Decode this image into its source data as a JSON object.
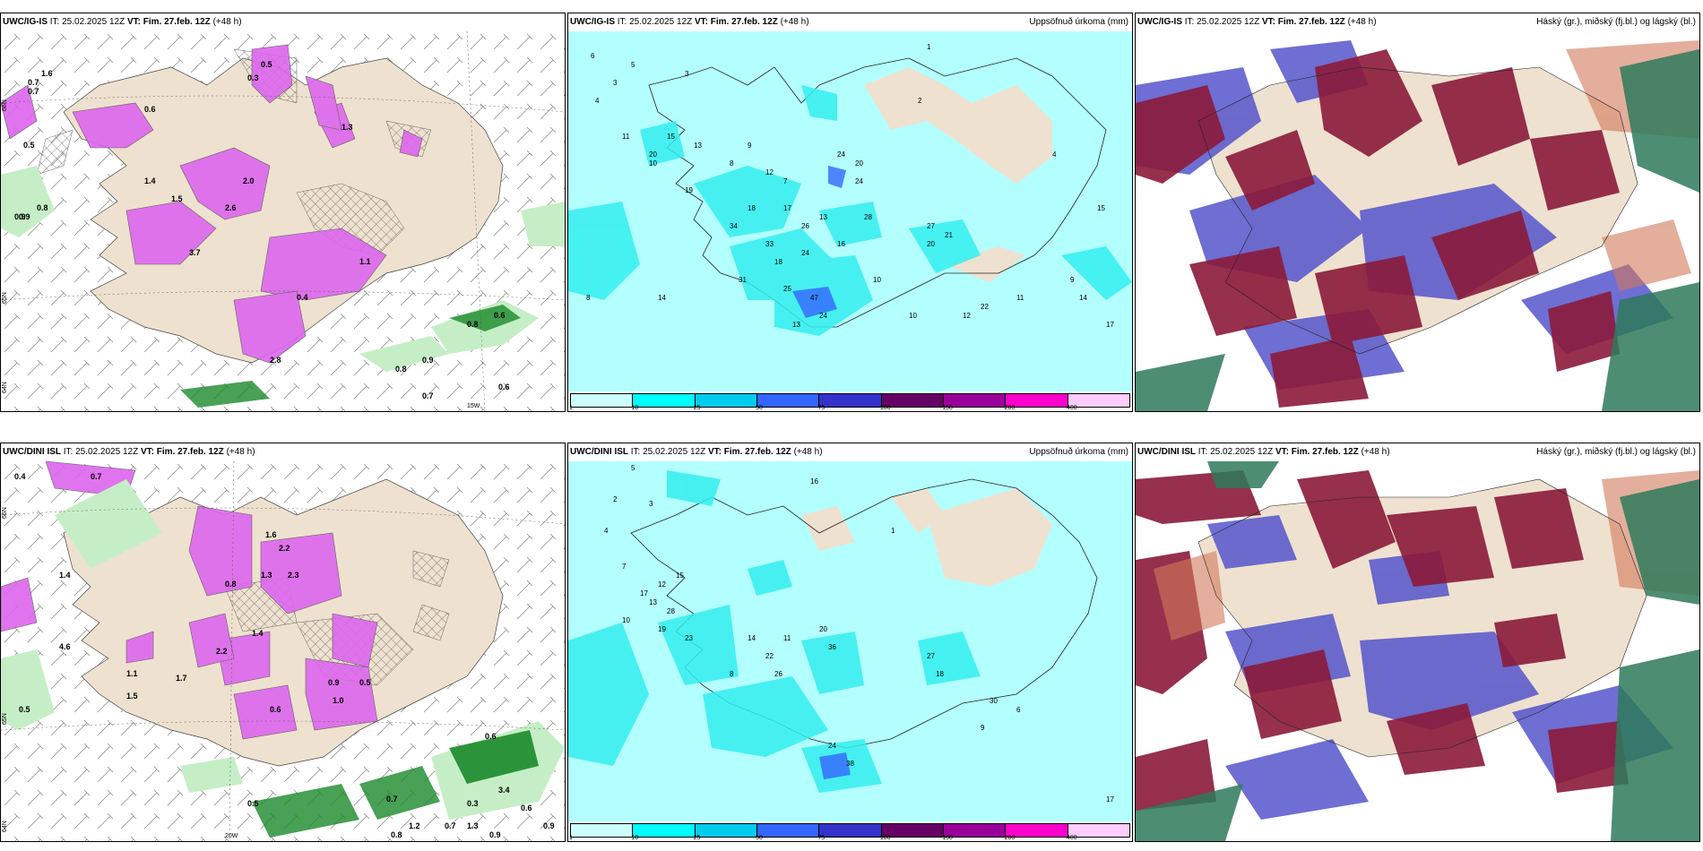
{
  "panels": [
    {
      "model": "UWC/IG-IS",
      "it_label": "IT:",
      "it": "25.02.2025 12Z",
      "vt_label": "VT:",
      "vt": "Fim. 27.feb. 12Z",
      "lead": "(+48 h)",
      "right_title": ""
    },
    {
      "model": "UWC/IG-IS",
      "it_label": "IT:",
      "it": "25.02.2025 12Z",
      "vt_label": "VT:",
      "vt": "Fim. 27.feb. 12Z",
      "lead": "(+48 h)",
      "right_title": "Uppsöfnuð úrkoma (mm)"
    },
    {
      "model": "UWC/IG-IS",
      "it_label": "IT:",
      "it": "25.02.2025 12Z",
      "vt_label": "VT:",
      "vt": "Fim. 27.feb. 12Z",
      "lead": "(+48 h)",
      "right_title": "Háský (gr.), miðský (fj.bl.) og lágský (bl.)"
    },
    {
      "model": "UWC/DINI ISL",
      "it_label": "IT:",
      "it": "25.02.2025 12Z",
      "vt_label": "VT:",
      "vt": "Fim. 27.feb. 12Z",
      "lead": "(+48 h)",
      "right_title": ""
    },
    {
      "model": "UWC/DINI ISL",
      "it_label": "IT:",
      "it": "25.02.2025 12Z",
      "vt_label": "VT:",
      "vt": "Fim. 27.feb. 12Z",
      "lead": "(+48 h)",
      "right_title": "Uppsöfnuð úrkoma (mm)"
    },
    {
      "model": "UWC/DINI ISL",
      "it_label": "IT:",
      "it": "25.02.2025 12Z",
      "vt_label": "VT:",
      "vt": "Fim. 27.feb. 12Z",
      "lead": "(+48 h)",
      "right_title": "Háský (gr.), miðský (fj.bl.) og lágský (bl.)"
    }
  ],
  "colorbar": {
    "ticks": [
      "1",
      "10",
      "25",
      "50",
      "75",
      "100",
      "150",
      "200",
      "400"
    ],
    "colors": [
      "#ccffff",
      "#00ffff",
      "#00ccee",
      "#3366ff",
      "#3333cc",
      "#660066",
      "#990099",
      "#ff00cc",
      "#ffccff"
    ]
  },
  "colors": {
    "land": "#efe1cf",
    "precip_light": "#b3ffff",
    "precip_mid": "#33eeee",
    "snow": "#dd66ee",
    "green_light": "#c6eec6",
    "green_dark": "#1a8a2a",
    "high_cloud": "#8b1a3a",
    "mid_cloud": "#5555cc",
    "low_cloud": "#2e7a5a"
  },
  "map_axes": {
    "ig": {
      "lat1": "66N",
      "lat2": "65N",
      "lat3": "64N",
      "lon1": "15W"
    },
    "dini": {
      "lat1": "66N",
      "lat2": "65N",
      "lat3": "64N",
      "lon1": "20W"
    }
  },
  "ig_snow_labels": [
    "1.4",
    "1.5",
    "2.0",
    "2.6",
    "3.7",
    "1.3",
    "0.9",
    "2.8",
    "0.4",
    "0.5",
    "1.6",
    "0.6",
    "0.7",
    "0.3",
    "1.1"
  ],
  "ig_sea_labels": [
    "0.7",
    "0.5",
    "0.9",
    "0.8",
    "0.6",
    "0.9",
    "0.8",
    "0.8",
    "0.7",
    "0.6"
  ],
  "ig_precip_labels": [
    "6",
    "3",
    "4",
    "1",
    "2",
    "5",
    "3",
    "10",
    "11",
    "15",
    "20",
    "13",
    "9",
    "7",
    "24",
    "20",
    "19",
    "24",
    "8",
    "12",
    "34",
    "18",
    "17",
    "13",
    "16",
    "28",
    "26",
    "27",
    "20",
    "21",
    "14",
    "33",
    "18",
    "24",
    "31",
    "25",
    "47",
    "24",
    "13",
    "10",
    "10",
    "12",
    "11",
    "9",
    "8",
    "4",
    "15",
    "22",
    "14",
    "17"
  ],
  "dini_snow_labels": [
    "0.4",
    "0.7",
    "1.6",
    "2.2",
    "1.4",
    "0.8",
    "1.3",
    "2.3",
    "4.6",
    "1.1",
    "1.7",
    "1.5",
    "0.9",
    "1.0",
    "0.6",
    "2.2",
    "1.4",
    "0.5"
  ],
  "dini_sea_labels": [
    "0.5",
    "0.6",
    "0.7",
    "0.3",
    "3.4",
    "0.6",
    "0.9",
    "1.2",
    "0.8",
    "0.5",
    "0.7",
    "1.3",
    "0.9"
  ],
  "dini_precip_labels": [
    "5",
    "3",
    "2",
    "1",
    "16",
    "4",
    "12",
    "15",
    "7",
    "17",
    "13",
    "28",
    "19",
    "23",
    "10",
    "22",
    "20",
    "14",
    "11",
    "8",
    "36",
    "26",
    "38",
    "24",
    "27",
    "18",
    "9",
    "6",
    "17",
    "30"
  ]
}
